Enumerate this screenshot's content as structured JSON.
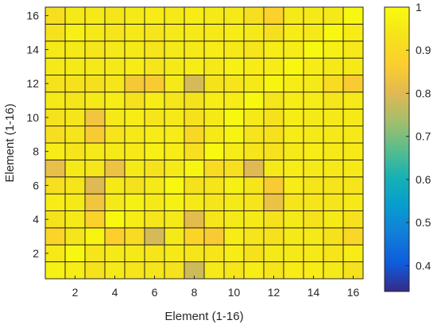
{
  "chart_data": {
    "type": "heatmap",
    "title": "",
    "xlabel": "Element (1-16)",
    "ylabel": "Element (1-16)",
    "x": [
      1,
      2,
      3,
      4,
      5,
      6,
      7,
      8,
      9,
      10,
      11,
      12,
      13,
      14,
      15,
      16
    ],
    "y": [
      1,
      2,
      3,
      4,
      5,
      6,
      7,
      8,
      9,
      10,
      11,
      12,
      13,
      14,
      15,
      16
    ],
    "x_ticks": [
      "2",
      "4",
      "6",
      "8",
      "10",
      "12",
      "14",
      "16"
    ],
    "y_ticks": [
      "2",
      "4",
      "6",
      "8",
      "10",
      "12",
      "14",
      "16"
    ],
    "colorbar": {
      "range": [
        0.34,
        1
      ],
      "ticks": [
        "0.4",
        "0.5",
        "0.6",
        "0.7",
        "0.8",
        "0.9",
        "1"
      ],
      "colormap": "parula"
    },
    "grid": true,
    "values": [
      [
        0.97,
        0.96,
        0.93,
        0.95,
        0.94,
        0.94,
        0.93,
        0.78,
        0.95,
        0.94,
        0.96,
        0.94,
        0.96,
        0.96,
        0.95,
        0.93
      ],
      [
        0.95,
        0.99,
        0.94,
        0.95,
        0.95,
        0.94,
        0.95,
        0.94,
        0.94,
        0.96,
        0.93,
        0.95,
        0.95,
        0.95,
        0.94,
        0.96
      ],
      [
        0.89,
        0.94,
        0.98,
        0.87,
        0.91,
        0.79,
        0.95,
        0.89,
        0.86,
        0.96,
        0.94,
        0.93,
        0.95,
        0.95,
        0.93,
        0.9
      ],
      [
        0.93,
        0.95,
        0.88,
        0.99,
        0.96,
        0.94,
        0.95,
        0.81,
        0.94,
        0.95,
        0.95,
        0.93,
        0.95,
        0.93,
        0.95,
        0.93
      ],
      [
        0.96,
        0.95,
        0.84,
        0.95,
        0.97,
        0.95,
        0.97,
        0.95,
        0.94,
        0.95,
        0.94,
        0.83,
        0.94,
        0.94,
        0.94,
        0.95
      ],
      [
        0.92,
        0.94,
        0.8,
        0.95,
        0.93,
        0.95,
        0.99,
        0.93,
        0.94,
        0.97,
        0.94,
        0.86,
        0.96,
        0.94,
        0.94,
        0.94
      ],
      [
        0.82,
        0.95,
        0.94,
        0.83,
        0.95,
        0.93,
        0.95,
        0.98,
        0.91,
        0.92,
        0.8,
        0.95,
        0.96,
        0.95,
        0.95,
        0.95
      ],
      [
        0.96,
        0.94,
        0.95,
        0.95,
        0.95,
        0.97,
        0.96,
        0.92,
        0.99,
        0.96,
        0.94,
        0.93,
        0.95,
        0.96,
        0.95,
        0.95
      ],
      [
        0.92,
        0.94,
        0.86,
        0.94,
        0.95,
        0.96,
        0.96,
        0.9,
        0.95,
        0.98,
        0.94,
        0.93,
        0.96,
        0.95,
        0.95,
        0.95
      ],
      [
        0.93,
        0.94,
        0.84,
        0.95,
        0.96,
        0.94,
        0.95,
        0.93,
        0.95,
        0.99,
        0.95,
        0.93,
        0.96,
        0.95,
        0.95,
        0.95
      ],
      [
        0.95,
        0.94,
        0.95,
        0.96,
        0.93,
        0.96,
        0.94,
        0.93,
        0.96,
        0.96,
        0.99,
        0.94,
        0.96,
        0.96,
        0.94,
        0.95
      ],
      [
        0.93,
        0.93,
        0.92,
        0.94,
        0.85,
        0.86,
        0.95,
        0.79,
        0.93,
        0.94,
        0.95,
        0.98,
        0.96,
        0.95,
        0.91,
        0.86
      ],
      [
        0.95,
        0.95,
        0.95,
        0.95,
        0.96,
        0.94,
        0.95,
        0.96,
        0.95,
        0.97,
        0.96,
        0.96,
        0.99,
        0.96,
        0.95,
        0.95
      ],
      [
        0.95,
        0.95,
        0.94,
        0.95,
        0.95,
        0.94,
        0.95,
        0.95,
        0.96,
        0.95,
        0.94,
        0.96,
        0.96,
        0.99,
        0.97,
        0.95
      ],
      [
        0.93,
        0.97,
        0.95,
        0.94,
        0.95,
        0.94,
        0.95,
        0.95,
        0.95,
        0.96,
        0.95,
        0.92,
        0.96,
        0.95,
        0.99,
        0.96
      ],
      [
        0.92,
        0.95,
        0.95,
        0.94,
        0.95,
        0.96,
        0.95,
        0.96,
        0.95,
        0.95,
        0.92,
        0.88,
        0.95,
        0.95,
        0.95,
        0.99
      ]
    ]
  }
}
